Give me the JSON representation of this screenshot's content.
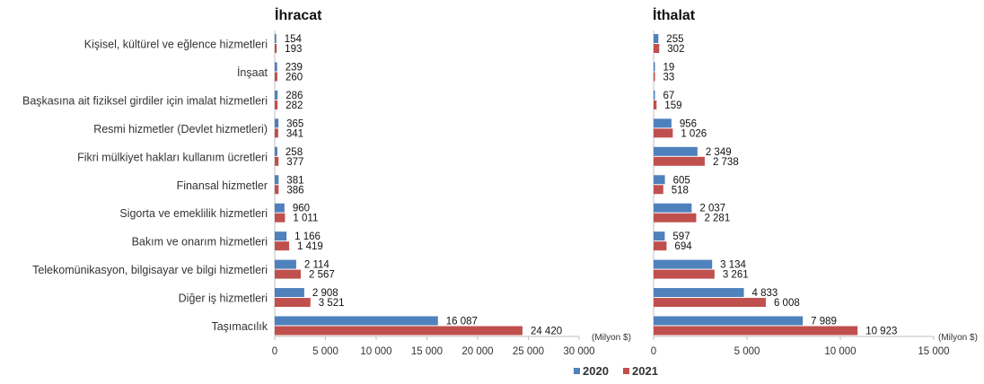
{
  "chart_data": [
    {
      "type": "bar",
      "orientation": "horizontal",
      "title": "İhracat",
      "unit_label": "(Milyon $)",
      "categories": [
        "Kişisel, kültürel ve eğlence hizmetleri",
        "İnşaat",
        "Başkasına ait fiziksel girdiler için imalat hizmetleri",
        "Resmi hizmetler (Devlet hizmetleri)",
        "Fikri mülkiyet hakları kullanım ücretleri",
        "Finansal hizmetler",
        "Sigorta ve emeklilik hizmetleri",
        "Bakım ve onarım hizmetleri",
        "Telekomünikasyon, bilgisayar ve bilgi hizmetleri",
        "Diğer iş hizmetleri",
        "Taşımacılık"
      ],
      "series": [
        {
          "name": "2020",
          "color": "#4f81bd",
          "values": [
            154,
            239,
            286,
            365,
            258,
            381,
            960,
            1166,
            2114,
            2908,
            16087
          ],
          "labels": [
            "154",
            "239",
            "286",
            "365",
            "258",
            "381",
            "960",
            "1 166",
            "2 114",
            "2 908",
            "16 087"
          ]
        },
        {
          "name": "2021",
          "color": "#c0504d",
          "values": [
            193,
            260,
            282,
            341,
            377,
            386,
            1011,
            1419,
            2567,
            3521,
            24420
          ],
          "labels": [
            "193",
            "260",
            "282",
            "341",
            "377",
            "386",
            "1 011",
            "1 419",
            "2 567",
            "3 521",
            "24 420"
          ]
        }
      ],
      "xlim": [
        0,
        30000
      ],
      "xticks": [
        0,
        5000,
        10000,
        15000,
        20000,
        25000,
        30000
      ],
      "xtick_labels": [
        "0",
        "5 000",
        "10 000",
        "15 000",
        "20 000",
        "25 000",
        "30 000"
      ],
      "grid": false
    },
    {
      "type": "bar",
      "orientation": "horizontal",
      "title": "İthalat",
      "unit_label": "(Milyon $)",
      "categories": [
        "Kişisel, kültürel ve eğlence hizmetleri",
        "İnşaat",
        "Başkasına ait fiziksel girdiler için imalat hizmetleri",
        "Resmi hizmetler (Devlet hizmetleri)",
        "Fikri mülkiyet hakları kullanım ücretleri",
        "Finansal hizmetler",
        "Sigorta ve emeklilik hizmetleri",
        "Bakım ve onarım hizmetleri",
        "Telekomünikasyon, bilgisayar ve bilgi hizmetleri",
        "Diğer iş hizmetleri",
        "Taşımacılık"
      ],
      "series": [
        {
          "name": "2020",
          "color": "#4f81bd",
          "values": [
            255,
            19,
            67,
            956,
            2349,
            605,
            2037,
            597,
            3134,
            4833,
            7989
          ],
          "labels": [
            "255",
            "19",
            "67",
            "956",
            "2 349",
            "605",
            "2 037",
            "597",
            "3 134",
            "4 833",
            "7 989"
          ]
        },
        {
          "name": "2021",
          "color": "#c0504d",
          "values": [
            302,
            33,
            159,
            1026,
            2738,
            518,
            2281,
            694,
            3261,
            6008,
            10923
          ],
          "labels": [
            "302",
            "33",
            "159",
            "1 026",
            "2 738",
            "518",
            "2 281",
            "694",
            "3 261",
            "6 008",
            "10 923"
          ]
        }
      ],
      "xlim": [
        0,
        15000
      ],
      "xticks": [
        0,
        5000,
        10000,
        15000
      ],
      "xtick_labels": [
        "0",
        "5 000",
        "10 000",
        "15 000"
      ],
      "grid": false
    }
  ],
  "legend": {
    "placement": "bottom",
    "items": [
      {
        "label": "2020",
        "color": "#4f81bd"
      },
      {
        "label": "2021",
        "color": "#c0504d"
      }
    ]
  }
}
